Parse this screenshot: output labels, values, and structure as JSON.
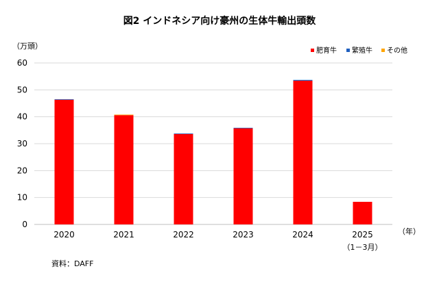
{
  "chart_data": {
    "type": "bar",
    "stacked": true,
    "title": "図2 インドネシア向け豪州の生体牛輸出頭数",
    "y_unit": "（万頭）",
    "x_unit": "（年）",
    "categories": [
      "2020",
      "2021",
      "2022",
      "2023",
      "2024",
      "2025"
    ],
    "category_sublabels": [
      "",
      "",
      "",
      "",
      "",
      "（1－3月）"
    ],
    "ylim": [
      0,
      60
    ],
    "yticks": [
      0,
      10,
      20,
      30,
      40,
      50,
      60
    ],
    "grid": true,
    "legend_position": "top-right",
    "series": [
      {
        "name": "肥育牛",
        "color": "#ff0000",
        "values": [
          46.4,
          40.6,
          33.6,
          35.8,
          53.4,
          8.4
        ]
      },
      {
        "name": "繁殖牛",
        "color": "#1f5fbf",
        "values": [
          0.1,
          0.0,
          0.2,
          0.1,
          0.3,
          0.0
        ]
      },
      {
        "name": "その他",
        "color": "#ffa500",
        "values": [
          0.0,
          0.2,
          0.0,
          0.0,
          0.0,
          0.0
        ]
      }
    ],
    "source": "資料：DAFF"
  }
}
